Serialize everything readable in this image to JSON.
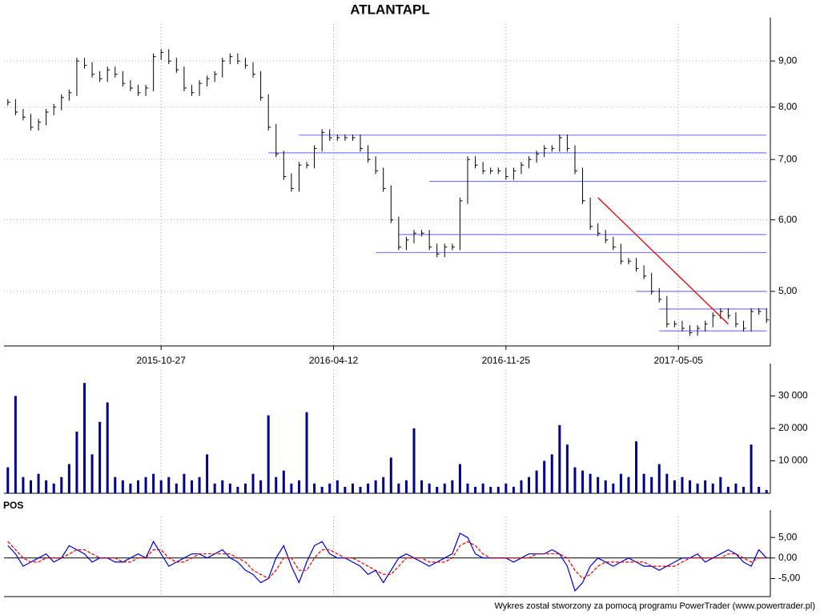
{
  "chart_data": [
    {
      "type": "ohlc",
      "title": "ATLANTAPL",
      "color": "#000000",
      "log": true,
      "xlim": [
        -0.5,
        99.5
      ],
      "xticks": [
        {
          "value": 20,
          "label": "2015-10-27"
        },
        {
          "value": 42.5,
          "label": "2016-04-12"
        },
        {
          "value": 65,
          "label": "2016-11-25"
        },
        {
          "value": 87.5,
          "label": "2017-05-05"
        }
      ],
      "ylim": [
        4.35,
        9.89
      ],
      "yticks": [
        {
          "value": 5,
          "label": "5,00"
        },
        {
          "value": 6,
          "label": "6,00"
        },
        {
          "value": 7,
          "label": "7,00"
        },
        {
          "value": 8,
          "label": "8,00"
        },
        {
          "value": 9,
          "label": "9,00"
        }
      ],
      "close": [
        8.1,
        7.9,
        7.8,
        7.6,
        7.7,
        7.9,
        8.0,
        8.2,
        8.3,
        9.0,
        8.9,
        8.7,
        8.6,
        8.8,
        8.7,
        8.5,
        8.4,
        8.3,
        8.4,
        9.1,
        9.2,
        9.0,
        8.8,
        8.4,
        8.3,
        8.5,
        8.6,
        8.7,
        9.0,
        9.1,
        9.0,
        8.9,
        8.7,
        8.2,
        7.6,
        7.1,
        6.7,
        6.5,
        6.9,
        6.9,
        7.2,
        7.5,
        7.4,
        7.4,
        7.4,
        7.4,
        7.2,
        7.0,
        6.8,
        6.5,
        6.0,
        5.6,
        5.7,
        5.8,
        5.8,
        5.6,
        5.5,
        5.6,
        5.6,
        6.3,
        7.0,
        6.9,
        6.8,
        6.8,
        6.8,
        6.7,
        6.8,
        6.9,
        7.0,
        7.1,
        7.2,
        7.2,
        7.4,
        7.2,
        6.8,
        6.3,
        5.9,
        5.8,
        5.7,
        5.6,
        5.4,
        5.4,
        5.3,
        5.2,
        5.0,
        4.9,
        4.6,
        4.6,
        4.55,
        4.5,
        4.55,
        4.6,
        4.7,
        4.75,
        4.7,
        4.6,
        4.55,
        4.75,
        4.75,
        4.65
      ],
      "levels": {
        "color": "#7b7bff",
        "lines": [
          {
            "value": 7.45,
            "x": [
              38,
              99
            ]
          },
          {
            "value": 7.12,
            "x": [
              34,
              99
            ]
          },
          {
            "value": 6.62,
            "x": [
              55,
              99
            ]
          },
          {
            "value": 5.78,
            "x": [
              51,
              99
            ]
          },
          {
            "value": 5.52,
            "x": [
              48,
              99
            ]
          },
          {
            "value": 5.0,
            "x": [
              82,
              99
            ]
          },
          {
            "value": 4.78,
            "x": [
              85,
              99
            ]
          },
          {
            "value": 4.52,
            "x": [
              85,
              99
            ]
          }
        ]
      },
      "trendline": {
        "x": [
          77,
          94
        ],
        "y": [
          6.35,
          4.6
        ],
        "color": "#e00000"
      }
    },
    {
      "type": "bar",
      "color": "#00008b",
      "xlim": [
        -0.5,
        99.5
      ],
      "ylim": [
        0,
        38000
      ],
      "yticks": [
        {
          "value": 10000,
          "label": "10 000"
        },
        {
          "value": 20000,
          "label": "20 000"
        },
        {
          "value": 30000,
          "label": "30 000"
        }
      ],
      "values": [
        8000,
        30000,
        5000,
        4000,
        6000,
        4000,
        3000,
        5000,
        9000,
        19000,
        34000,
        12000,
        22000,
        28000,
        5000,
        4000,
        3000,
        4000,
        5000,
        6000,
        4000,
        5000,
        3000,
        6000,
        4000,
        5000,
        12000,
        3000,
        4000,
        3000,
        2000,
        3000,
        6000,
        4000,
        24000,
        5000,
        7000,
        3000,
        4000,
        25000,
        3000,
        2000,
        3000,
        4000,
        2000,
        3000,
        2000,
        3000,
        4000,
        5000,
        11000,
        3000,
        4000,
        20000,
        4000,
        3000,
        2000,
        3000,
        4000,
        9000,
        3000,
        2000,
        3000,
        2000,
        2000,
        3000,
        2000,
        4000,
        5000,
        7000,
        10000,
        12000,
        21000,
        15000,
        8000,
        7000,
        6000,
        5000,
        4000,
        3000,
        6000,
        5000,
        16000,
        6000,
        5000,
        9000,
        6000,
        4000,
        5000,
        4000,
        3000,
        4000,
        3000,
        5000,
        2000,
        3000,
        2000,
        15000,
        2000,
        1000
      ]
    },
    {
      "type": "line",
      "title": "POS",
      "xlim": [
        -0.5,
        99.5
      ],
      "ylim": [
        -9.4,
        10.1
      ],
      "yticks": [
        {
          "value": 5,
          "label": "5,00"
        },
        {
          "value": 0,
          "label": "0,00"
        },
        {
          "value": -5,
          "label": "-5,00"
        }
      ],
      "series": [
        {
          "color": "#0000cc",
          "dash": false,
          "values": [
            3,
            1,
            -2,
            -1,
            0,
            1,
            -1,
            0,
            3,
            2,
            1,
            -1,
            0,
            0,
            -1,
            -1,
            0,
            1,
            0,
            4,
            1,
            -2,
            -1,
            0,
            1,
            1,
            0,
            1,
            2,
            0,
            -1,
            -3,
            -4,
            -6,
            -5,
            0,
            3,
            -2,
            -6,
            -1,
            3,
            4,
            1,
            0,
            0,
            -1,
            -2,
            -4,
            -3,
            -6,
            -3,
            0,
            1,
            0,
            -1,
            -2,
            -1,
            0,
            1,
            6,
            5,
            1,
            0,
            0,
            0,
            0,
            -1,
            0,
            1,
            1,
            1,
            2,
            1,
            -2,
            -8,
            -6,
            -2,
            0,
            -1,
            -2,
            -1,
            0,
            -1,
            -2,
            -2,
            -3,
            -2,
            -1,
            0,
            0,
            1,
            -1,
            0,
            1,
            2,
            1,
            -1,
            -2,
            2,
            0
          ]
        },
        {
          "color": "#e00000",
          "dash": true,
          "values": [
            4,
            2,
            0,
            -1,
            -1,
            0,
            0,
            0,
            1,
            2,
            2,
            1,
            0,
            0,
            0,
            -1,
            -1,
            0,
            0,
            2,
            2,
            0,
            -1,
            -1,
            0,
            1,
            1,
            1,
            1,
            1,
            0,
            -1,
            -3,
            -4,
            -5,
            -3,
            0,
            0,
            -3,
            -3,
            0,
            2,
            2,
            1,
            0,
            0,
            -1,
            -2,
            -3,
            -4,
            -4,
            -2,
            0,
            0,
            0,
            -1,
            -1,
            -1,
            0,
            3,
            4,
            3,
            1,
            0,
            0,
            0,
            0,
            0,
            0,
            1,
            1,
            1,
            1,
            0,
            -3,
            -5,
            -4,
            -2,
            -1,
            -1,
            -1,
            -1,
            -1,
            -1,
            -2,
            -2,
            -2,
            -2,
            -1,
            0,
            0,
            0,
            0,
            0,
            1,
            1,
            0,
            -1,
            0,
            0
          ]
        }
      ]
    }
  ],
  "footer": "Wykres został stworzony za pomocą programu PowerTrader (www.powertrader.pl)"
}
